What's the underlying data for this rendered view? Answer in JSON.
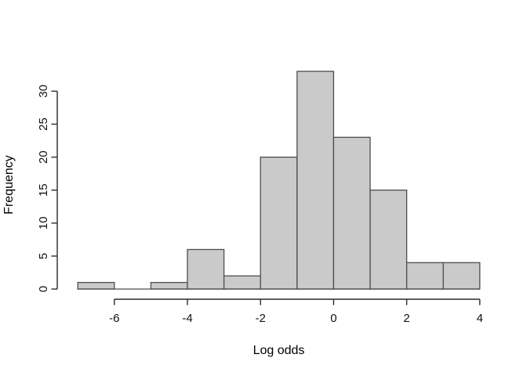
{
  "figure": {
    "background": "#ffffff"
  },
  "chart_data": {
    "type": "bar",
    "subtype": "histogram",
    "title": "",
    "xlabel": "Log odds",
    "ylabel": "Frequency",
    "bin_start": -7,
    "bin_width": 1,
    "bin_edges": [
      -7,
      -6,
      -5,
      -4,
      -3,
      -2,
      -1,
      0,
      1,
      2,
      3,
      4
    ],
    "counts": [
      1,
      0,
      1,
      6,
      2,
      20,
      33,
      23,
      15,
      4,
      4
    ],
    "x_ticks": [
      -6,
      -4,
      -2,
      0,
      2,
      4
    ],
    "y_ticks": [
      0,
      5,
      10,
      15,
      20,
      25,
      30
    ],
    "xlim": [
      -7,
      4
    ],
    "ylim": [
      0,
      33
    ],
    "grid": false,
    "legend": false,
    "bar_fill": "#cacaca",
    "bar_stroke": "#4d4d4d",
    "axis_color": "#2b2b2b",
    "text_color": "#111111"
  }
}
